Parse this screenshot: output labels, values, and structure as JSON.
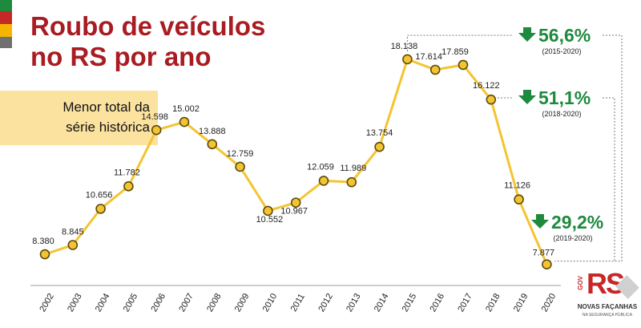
{
  "header": {
    "title_line1": "Roubo de veículos",
    "title_line2": "no RS por ano"
  },
  "callout": {
    "line1": "Menor total da",
    "line2": "série histórica"
  },
  "colors": {
    "title": "#a81c22",
    "line": "#f4c430",
    "marker_fill": "#f4c430",
    "marker_stroke": "#5a4a10",
    "down_arrow": "#1e8a3e",
    "callout_bg": "#fbe29f",
    "stripe_green": "#1e8a3e",
    "stripe_red": "#c62828",
    "stripe_yellow": "#f4b400",
    "stripe_gray": "#707070"
  },
  "chart_data": {
    "type": "line",
    "categories": [
      "2002",
      "2003",
      "2004",
      "2005",
      "2006",
      "2007",
      "2008",
      "2009",
      "2010",
      "2011",
      "2012",
      "2013",
      "2014",
      "2015",
      "2016",
      "2017",
      "2018",
      "2019",
      "2020"
    ],
    "values": [
      8380,
      8845,
      10656,
      11782,
      14598,
      15002,
      13888,
      12759,
      10552,
      10967,
      12059,
      11989,
      13754,
      18138,
      17614,
      17859,
      16122,
      11126,
      7877
    ],
    "data_labels": [
      "8.380",
      "8.845",
      "10.656",
      "11.782",
      "14.598",
      "15.002",
      "13.888",
      "12.759",
      "10.552",
      "10.967",
      "12.059",
      "11.989",
      "13.754",
      "18.138",
      "17.614",
      "17.859",
      "16.122",
      "11.126",
      "7.877"
    ],
    "ylim": [
      7300,
      19500
    ],
    "grid": false,
    "annotations": [
      {
        "value": "56,6%",
        "period": "(2015-2020)",
        "icon": "down-arrow-icon",
        "from": "2015",
        "to": "2020"
      },
      {
        "value": "51,1%",
        "period": "(2018-2020)",
        "icon": "down-arrow-icon",
        "from": "2018",
        "to": "2020"
      },
      {
        "value": "29,2%",
        "period": "(2019-2020)",
        "icon": "down-arrow-icon",
        "from": "2019",
        "to": "2020"
      }
    ]
  },
  "logo": {
    "side": "GOV",
    "mark": "RS",
    "line1": "NOVAS FAÇANHAS",
    "line2": "NA SEGURANÇA PÚBLICA"
  }
}
